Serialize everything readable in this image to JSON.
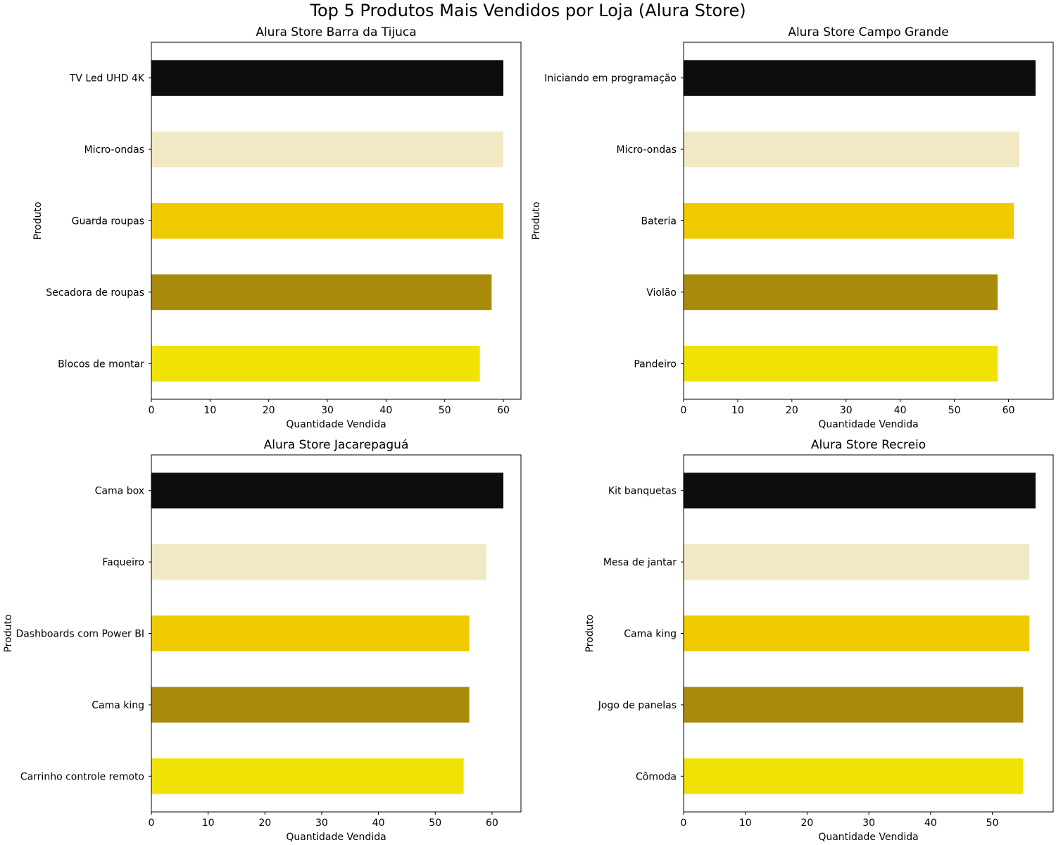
{
  "figure": {
    "title": "Top 5 Produtos Mais Vendidos por Loja (Alura Store)"
  },
  "chart_data": [
    {
      "type": "bar",
      "orientation": "horizontal",
      "title": "Alura Store Barra da Tijuca",
      "xlabel": "Quantidade Vendida",
      "ylabel": "Produto",
      "categories": [
        "TV Led UHD 4K",
        "Micro-ondas",
        "Guarda roupas",
        "Secadora de roupas",
        "Blocos de montar"
      ],
      "values": [
        60,
        60,
        60,
        58,
        56
      ],
      "xlim": [
        0,
        63
      ],
      "xticks": [
        0,
        10,
        20,
        30,
        40,
        50,
        60
      ],
      "colors": [
        "#0d0d0d",
        "#f2e9c4",
        "#f0ca00",
        "#a88b0a",
        "#f0e205"
      ],
      "grid": false
    },
    {
      "type": "bar",
      "orientation": "horizontal",
      "title": "Alura Store Campo Grande",
      "xlabel": "Quantidade Vendida",
      "ylabel": "Produto",
      "categories": [
        "Iniciando em programação",
        "Micro-ondas",
        "Bateria",
        "Violão",
        "Pandeiro"
      ],
      "values": [
        65,
        62,
        61,
        58,
        58
      ],
      "xlim": [
        0,
        68.25
      ],
      "xticks": [
        0,
        10,
        20,
        30,
        40,
        50,
        60
      ],
      "colors": [
        "#0d0d0d",
        "#f2e9c4",
        "#f0ca00",
        "#a88b0a",
        "#f0e205"
      ],
      "grid": false
    },
    {
      "type": "bar",
      "orientation": "horizontal",
      "title": "Alura Store Jacarepaguá",
      "xlabel": "Quantidade Vendida",
      "ylabel": "Produto",
      "categories": [
        "Cama box",
        "Faqueiro",
        "Dashboards com Power BI",
        "Cama king",
        "Carrinho controle remoto"
      ],
      "values": [
        62,
        59,
        56,
        56,
        55
      ],
      "xlim": [
        0,
        65.1
      ],
      "xticks": [
        0,
        10,
        20,
        30,
        40,
        50,
        60
      ],
      "colors": [
        "#0d0d0d",
        "#f2e9c4",
        "#f0ca00",
        "#a88b0a",
        "#f0e205"
      ],
      "grid": false
    },
    {
      "type": "bar",
      "orientation": "horizontal",
      "title": "Alura Store Recreio",
      "xlabel": "Quantidade Vendida",
      "ylabel": "Produto",
      "categories": [
        "Kit banquetas",
        "Mesa de jantar",
        "Cama king",
        "Jogo de panelas",
        "Cômoda"
      ],
      "values": [
        57,
        56,
        56,
        55,
        55
      ],
      "xlim": [
        0,
        59.85
      ],
      "xticks": [
        0,
        10,
        20,
        30,
        40,
        50
      ],
      "colors": [
        "#0d0d0d",
        "#f2e9c4",
        "#f0ca00",
        "#a88b0a",
        "#f0e205"
      ],
      "grid": false
    }
  ]
}
